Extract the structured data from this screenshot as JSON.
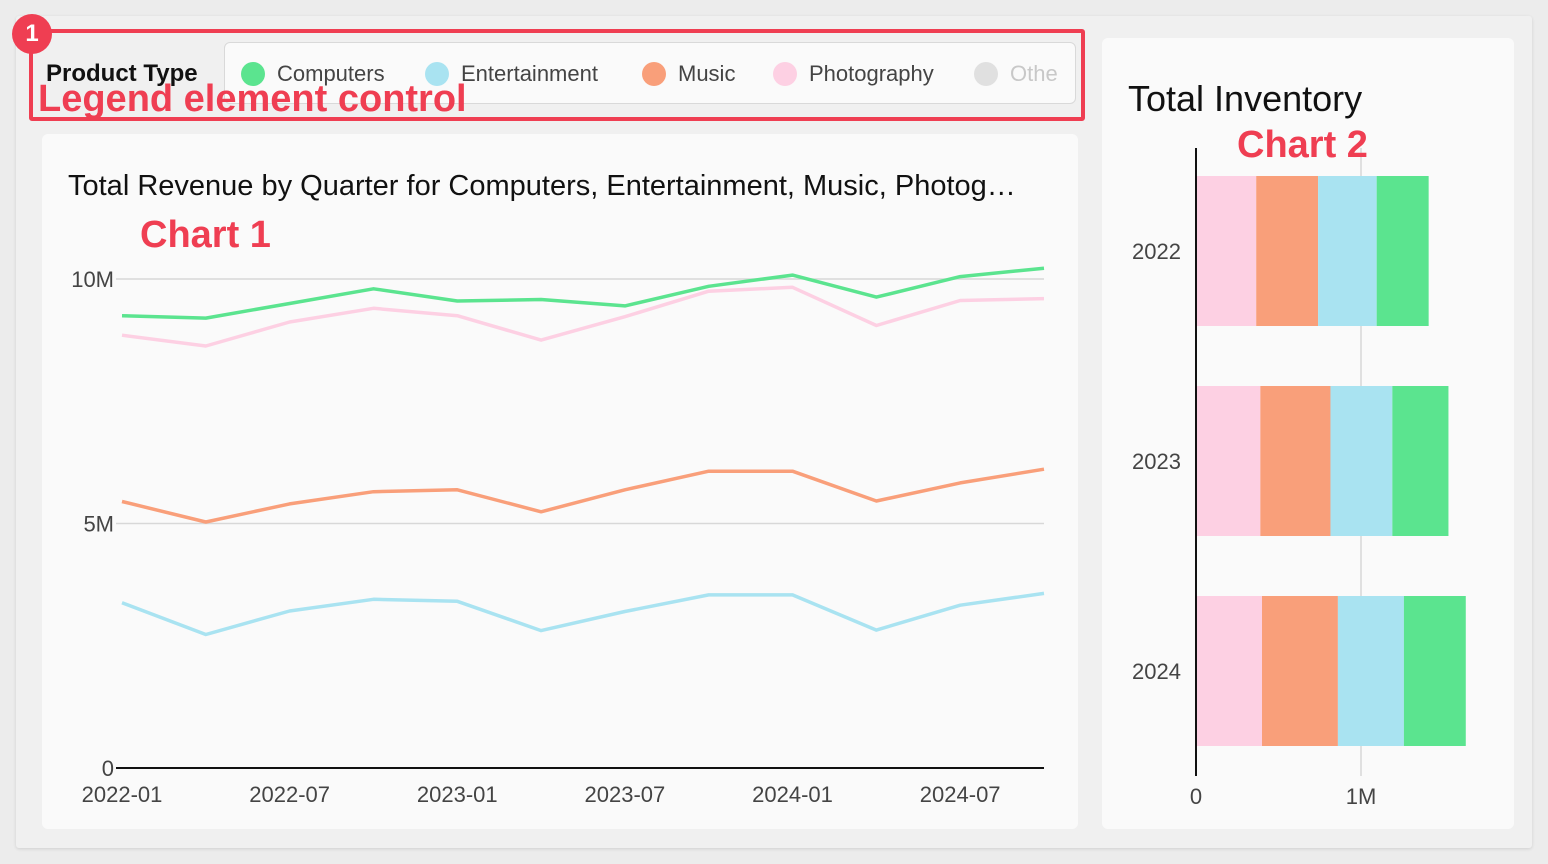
{
  "legend": {
    "annotation_number": "1",
    "label": "Product Type",
    "annotation_label": "Legend element control",
    "items": [
      {
        "label": "Computers",
        "color": "#5be48f",
        "dim": false
      },
      {
        "label": "Entertainment",
        "color": "#a9e3f1",
        "dim": false
      },
      {
        "label": "Music",
        "color": "#f99f7a",
        "dim": false
      },
      {
        "label": "Photography",
        "color": "#fdd0e3",
        "dim": false
      },
      {
        "label": "Othe",
        "color": "#e0e0e0",
        "dim": true
      }
    ]
  },
  "chart1": {
    "title": "Total Revenue by Quarter for Computers, Entertainment, Music, Photog…",
    "annotation": "Chart 1"
  },
  "chart2": {
    "title": "Total Inventory",
    "annotation": "Chart 2"
  },
  "chart_data": [
    {
      "type": "line",
      "title": "Total Revenue by Quarter for Computers, Entertainment, Music, Photog…",
      "x": [
        "2022-01",
        "2022-04",
        "2022-07",
        "2022-10",
        "2023-01",
        "2023-04",
        "2023-07",
        "2023-10",
        "2024-01",
        "2024-04",
        "2024-07",
        "2024-10"
      ],
      "xticks": [
        "2022-01",
        "2022-07",
        "2023-01",
        "2023-07",
        "2024-01",
        "2024-07"
      ],
      "yticks": [
        {
          "value": 0,
          "label": "0"
        },
        {
          "value": 5000000,
          "label": "5M"
        },
        {
          "value": 10000000,
          "label": "10M"
        }
      ],
      "ylim": [
        0,
        10000000
      ],
      "grid": true,
      "series": [
        {
          "name": "Computers",
          "color": "#5be48f",
          "values": [
            9250000,
            9200000,
            9500000,
            9800000,
            9550000,
            9580000,
            9450000,
            9850000,
            10080000,
            9630000,
            10050000,
            10220000
          ]
        },
        {
          "name": "Photography",
          "color": "#fdd0e3",
          "values": [
            8850000,
            8630000,
            9120000,
            9400000,
            9250000,
            8750000,
            9230000,
            9750000,
            9830000,
            9050000,
            9560000,
            9600000
          ]
        },
        {
          "name": "Music",
          "color": "#f99f7a",
          "values": [
            5450000,
            5030000,
            5400000,
            5650000,
            5690000,
            5240000,
            5690000,
            6070000,
            6070000,
            5460000,
            5830000,
            6110000
          ]
        },
        {
          "name": "Entertainment",
          "color": "#a9e3f1",
          "values": [
            3380000,
            2730000,
            3210000,
            3450000,
            3410000,
            2810000,
            3200000,
            3540000,
            3540000,
            2820000,
            3330000,
            3570000
          ]
        }
      ]
    },
    {
      "type": "bar",
      "orientation": "horizontal",
      "stacked": true,
      "title": "Total Inventory",
      "categories": [
        "2022",
        "2023",
        "2024"
      ],
      "xticks": [
        {
          "value": 0,
          "label": "0"
        },
        {
          "value": 1000000,
          "label": "1M"
        }
      ],
      "xlim": [
        0,
        1650000
      ],
      "grid": true,
      "series": [
        {
          "name": "Photography",
          "color": "#fdd0e3",
          "values": [
            365000,
            390000,
            400000
          ]
        },
        {
          "name": "Music",
          "color": "#f99f7a",
          "values": [
            375000,
            425000,
            460000
          ]
        },
        {
          "name": "Entertainment",
          "color": "#a9e3f1",
          "values": [
            355000,
            375000,
            400000
          ]
        },
        {
          "name": "Computers",
          "color": "#5be48f",
          "values": [
            315000,
            340000,
            375000
          ]
        }
      ]
    }
  ]
}
